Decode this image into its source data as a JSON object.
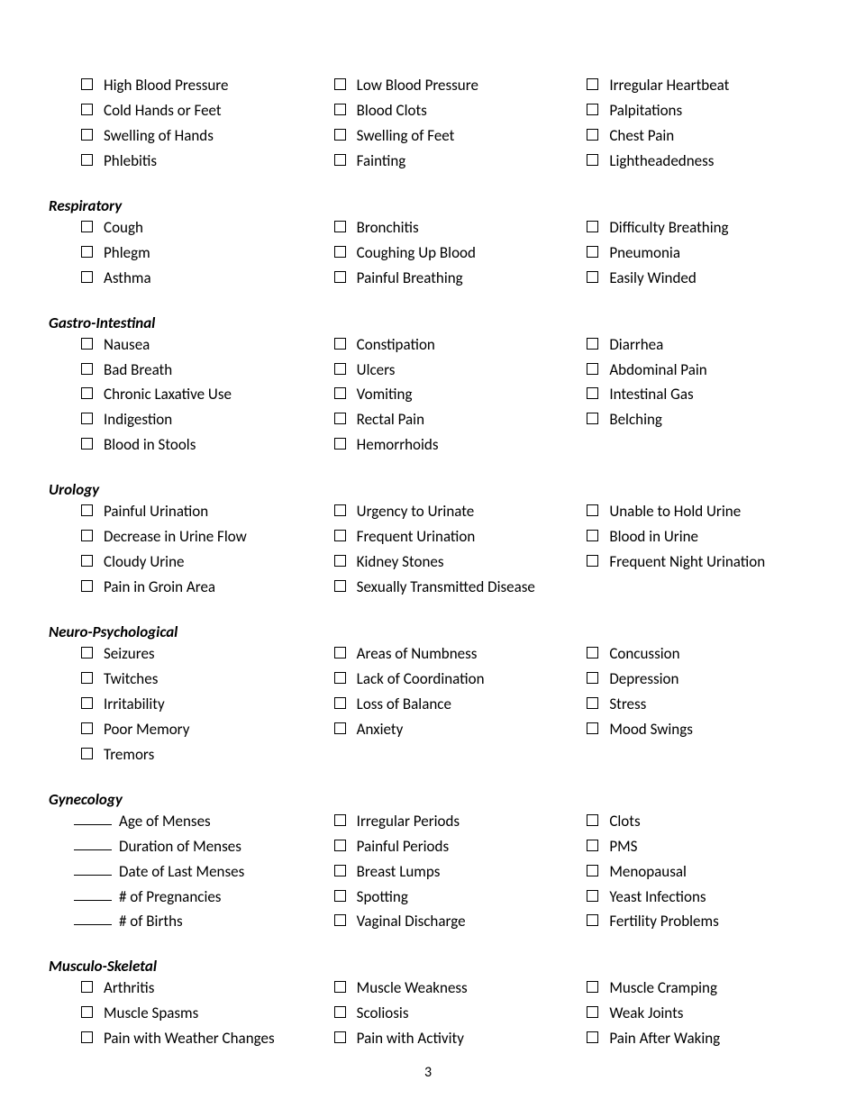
{
  "page_number": "3",
  "sections": {
    "cardiovascular": {
      "title": null,
      "rows": [
        [
          "High Blood Pressure",
          "Low Blood Pressure",
          "Irregular Heartbeat"
        ],
        [
          "Cold Hands or Feet",
          "Blood Clots",
          "Palpitations"
        ],
        [
          "Swelling of Hands",
          "Swelling of Feet",
          "Chest Pain"
        ],
        [
          "Phlebitis",
          "Fainting",
          "Lightheadedness"
        ]
      ]
    },
    "respiratory": {
      "title": "Respiratory",
      "rows": [
        [
          "Cough",
          "Bronchitis",
          "Difficulty Breathing"
        ],
        [
          "Phlegm",
          "Coughing Up Blood",
          "Pneumonia"
        ],
        [
          "Asthma",
          "Painful Breathing",
          "Easily Winded"
        ]
      ]
    },
    "gastro": {
      "title": "Gastro-Intestinal",
      "rows": [
        [
          "Nausea",
          "Constipation",
          "Diarrhea"
        ],
        [
          "Bad Breath",
          "Ulcers",
          "Abdominal Pain"
        ],
        [
          "Chronic Laxative Use",
          "Vomiting",
          "Intestinal Gas"
        ],
        [
          "Indigestion",
          "Rectal Pain",
          "Belching"
        ],
        [
          "Blood in Stools",
          "Hemorrhoids",
          null
        ]
      ]
    },
    "urology": {
      "title": "Urology",
      "rows": [
        [
          "Painful Urination",
          "Urgency to Urinate",
          "Unable to Hold Urine"
        ],
        [
          "Decrease in Urine Flow",
          "Frequent Urination",
          "Blood in Urine"
        ],
        [
          "Cloudy Urine",
          "Kidney Stones",
          "Frequent Night Urination"
        ],
        [
          "Pain in Groin Area",
          "Sexually Transmitted Disease",
          null
        ]
      ]
    },
    "neuro": {
      "title": "Neuro-Psychological",
      "rows": [
        [
          "Seizures",
          "Areas of Numbness",
          "Concussion"
        ],
        [
          "Twitches",
          "Lack of Coordination",
          "Depression"
        ],
        [
          "Irritability",
          "Loss of Balance",
          "Stress"
        ],
        [
          "Poor Memory",
          "Anxiety",
          "Mood Swings"
        ],
        [
          "Tremors",
          null,
          null
        ]
      ]
    },
    "gynecology": {
      "title": "Gynecology",
      "col1_fillins": [
        "Age of Menses",
        "Duration of Menses",
        "Date of Last Menses",
        "# of Pregnancies",
        "# of Births"
      ],
      "col2": [
        "Irregular Periods",
        "Painful Periods",
        "Breast Lumps",
        "Spotting",
        "Vaginal Discharge"
      ],
      "col3": [
        "Clots",
        "PMS",
        "Menopausal",
        "Yeast Infections",
        "Fertility Problems"
      ]
    },
    "musculo": {
      "title": "Musculo-Skeletal",
      "rows": [
        [
          "Arthritis",
          "Muscle Weakness",
          "Muscle Cramping"
        ],
        [
          "Muscle Spasms",
          "Scoliosis",
          "Weak Joints"
        ],
        [
          "Pain with Weather Changes",
          "Pain with Activity",
          "Pain After Waking"
        ]
      ]
    }
  }
}
